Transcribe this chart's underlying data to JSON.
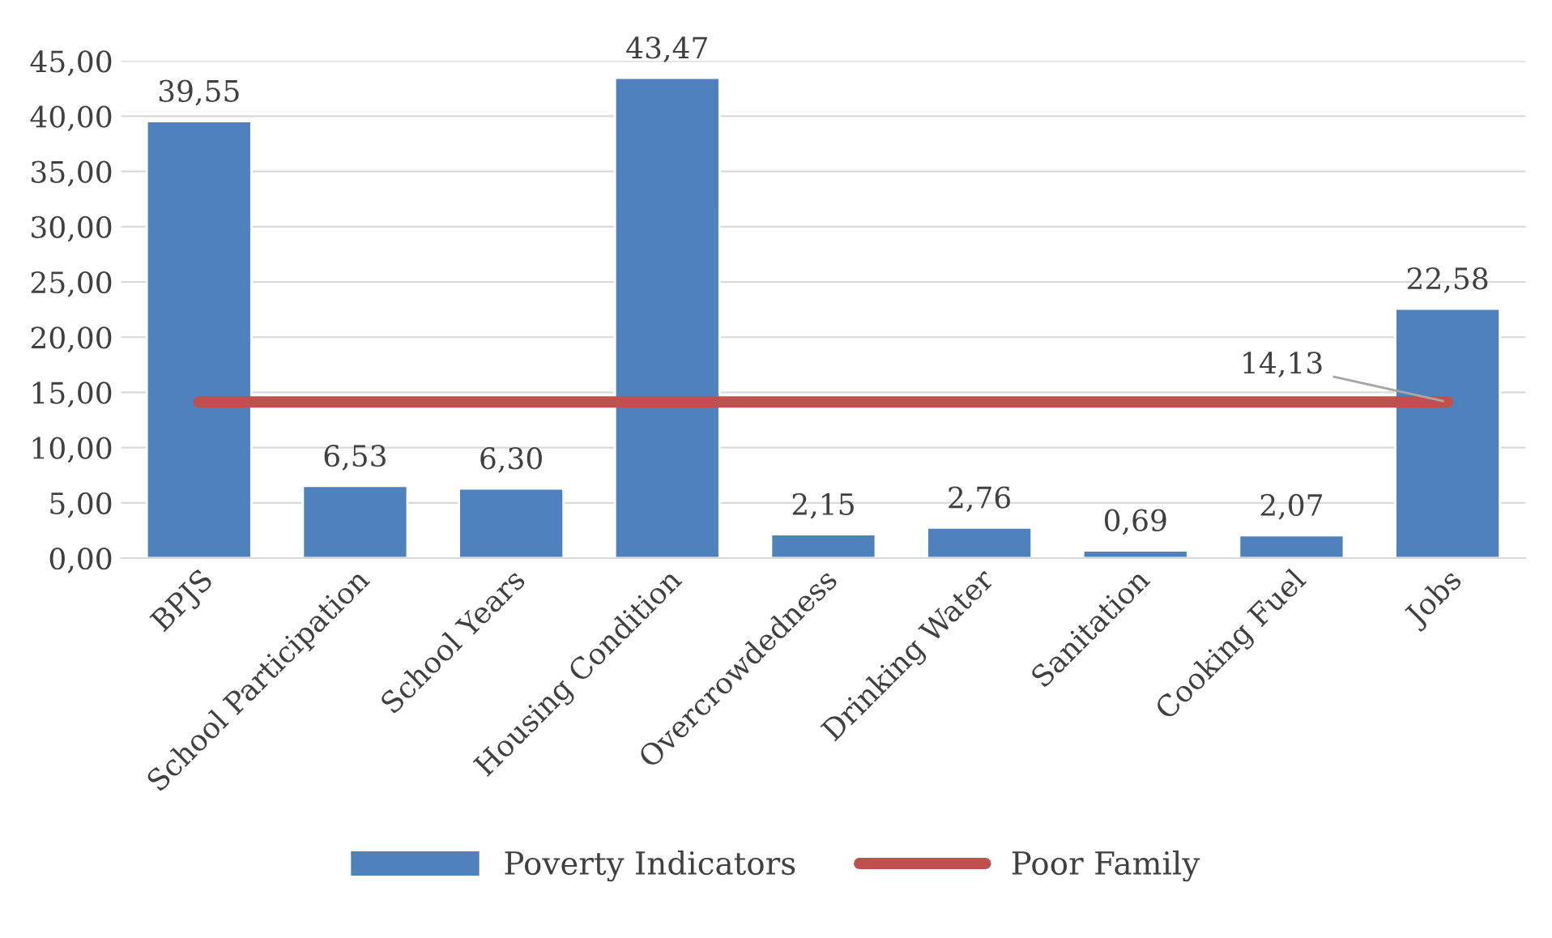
{
  "chart_data": {
    "type": "bar",
    "categories": [
      "BPJS",
      "School Participation",
      "School Years",
      "Housing Condition",
      "Overcrowdedness",
      "Drinking Water",
      "Sanitation",
      "Cooking Fuel",
      "Jobs"
    ],
    "series": [
      {
        "name": "Poverty Indicators",
        "color": "#4f81bd",
        "values": [
          39.55,
          6.53,
          6.3,
          43.47,
          2.15,
          2.76,
          0.69,
          2.07,
          22.58
        ],
        "value_labels": [
          "39,55",
          "6,53",
          "6,30",
          "43,47",
          "2,15",
          "2,76",
          "0,69",
          "2,07",
          "22,58"
        ]
      },
      {
        "name": "Poor Family",
        "type": "line",
        "color": "#c0504d",
        "values": [
          14.13,
          14.13,
          14.13,
          14.13,
          14.13,
          14.13,
          14.13,
          14.13,
          14.13
        ],
        "value_labels": [
          null,
          null,
          null,
          null,
          null,
          null,
          null,
          null,
          "14,13"
        ]
      }
    ],
    "ylim": [
      0,
      45
    ],
    "yticks": [
      {
        "value": 0,
        "label": "0,00"
      },
      {
        "value": 5,
        "label": "5,00"
      },
      {
        "value": 10,
        "label": "10,00"
      },
      {
        "value": 15,
        "label": "15,00"
      },
      {
        "value": 20,
        "label": "20,00"
      },
      {
        "value": 25,
        "label": "25,00"
      },
      {
        "value": 30,
        "label": "30,00"
      },
      {
        "value": 35,
        "label": "35,00"
      },
      {
        "value": 40,
        "label": "40,00"
      },
      {
        "value": 45,
        "label": "45,00"
      }
    ],
    "grid": "y",
    "legend": "bottom",
    "marker": "none"
  }
}
